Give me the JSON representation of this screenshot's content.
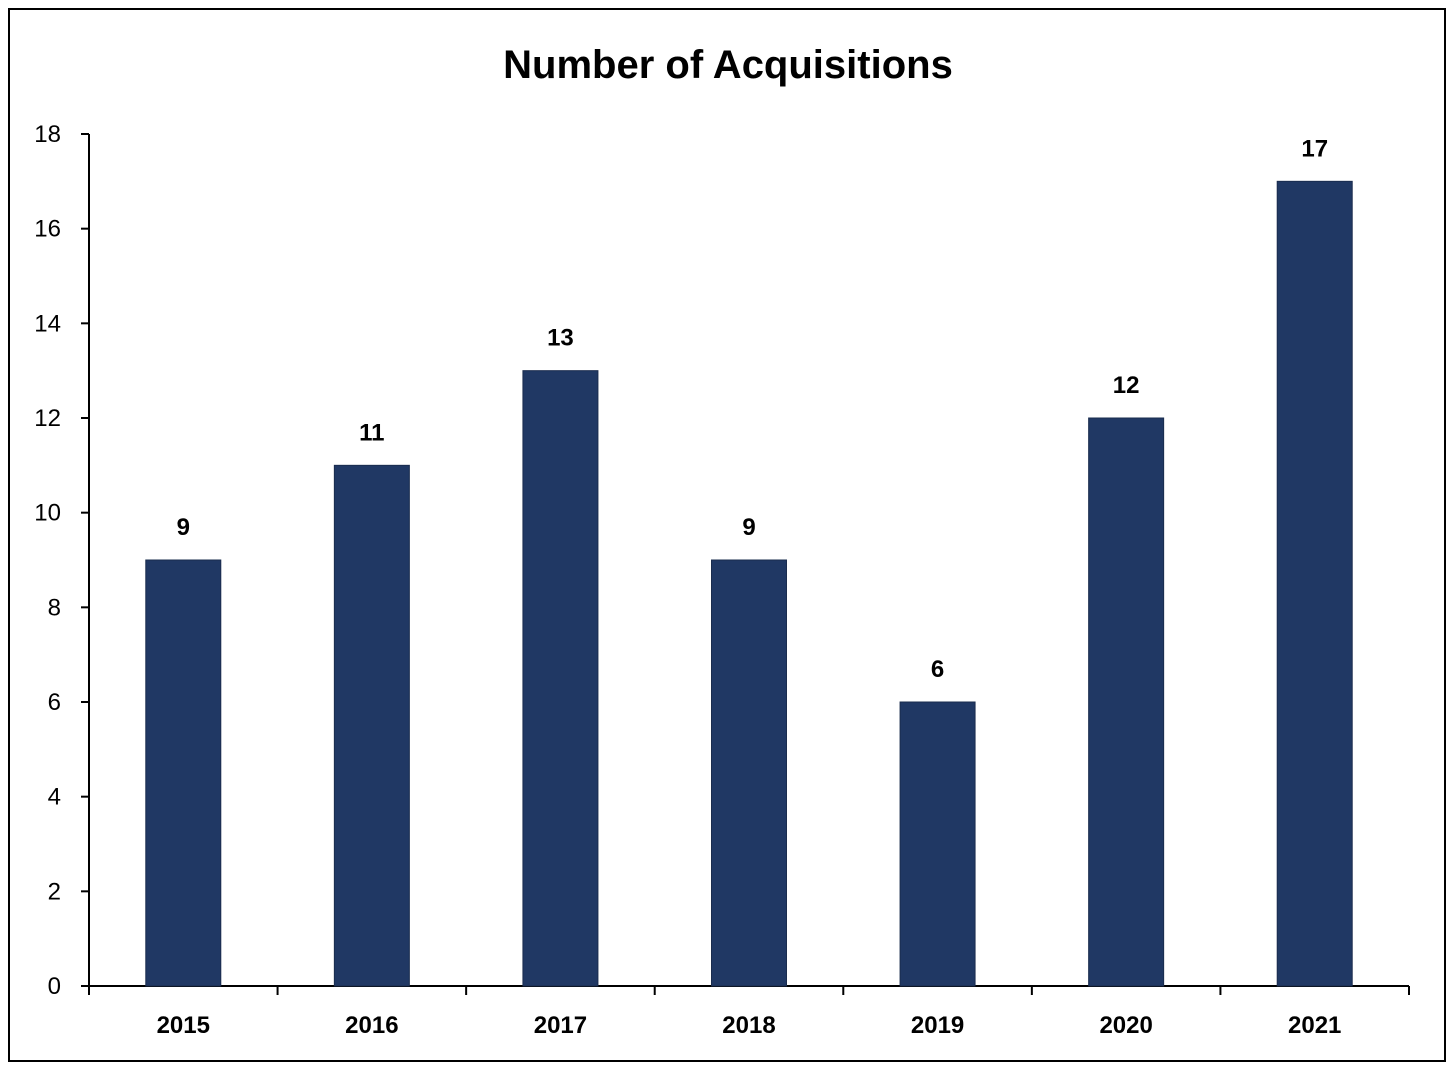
{
  "chart_data": {
    "type": "bar",
    "title": "Number of Acquisitions",
    "xlabel": "",
    "ylabel": "",
    "categories": [
      "2015",
      "2016",
      "2017",
      "2018",
      "2019",
      "2020",
      "2021"
    ],
    "values": [
      9,
      11,
      13,
      9,
      6,
      12,
      17
    ],
    "data_labels": [
      "9",
      "11",
      "13",
      "9",
      "6",
      "12",
      "17"
    ],
    "ylim": [
      0,
      18
    ],
    "y_ticks": [
      "0",
      "2",
      "4",
      "6",
      "8",
      "10",
      "12",
      "14",
      "16",
      "18"
    ],
    "grid": false,
    "legend": "none",
    "colors": {
      "bar": "#203864",
      "bar_edge": "#1a2c4e",
      "axis": "#000000"
    }
  }
}
